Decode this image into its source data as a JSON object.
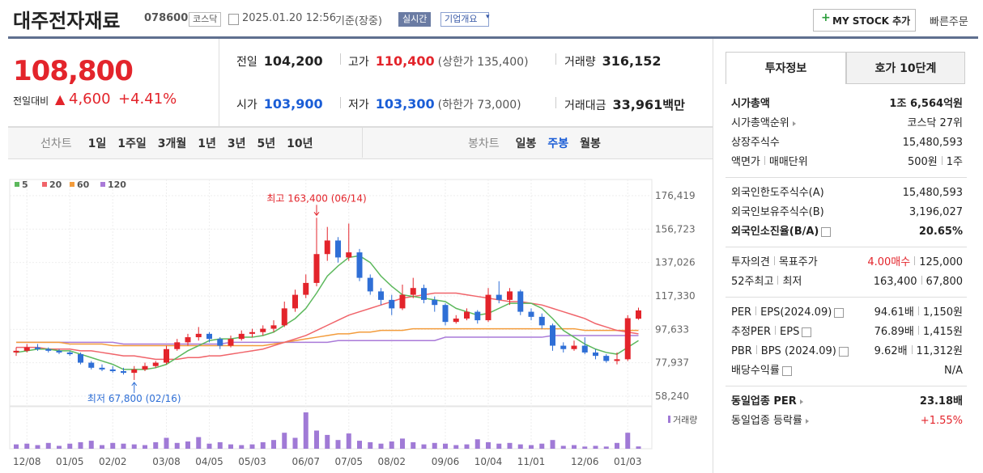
{
  "header": {
    "name": "대주전자재료",
    "code": "078600",
    "market": "코스닥",
    "datetime": "2025.01.20 12:56",
    "basis": "기준(장중)",
    "realtime": "실시간",
    "overview": "기업개요",
    "mystock": "MY STOCK 추가",
    "quickorder": "빠른주문"
  },
  "price": {
    "current": "108,800",
    "change_label": "전일대비",
    "change": "4,600",
    "change_rate": "+4.41%"
  },
  "quote": [
    {
      "label": "전일",
      "value": "104,200"
    },
    {
      "label": "고가",
      "value": "110,400",
      "note": "(상한가 135,400)",
      "color": "#e3242b"
    },
    {
      "label": "거래량",
      "value": "316,152"
    },
    {
      "label": "시가",
      "value": "103,900",
      "color": "#1a5dd6"
    },
    {
      "label": "저가",
      "value": "103,300",
      "note": "(하한가 73,000)",
      "color": "#1a5dd6"
    },
    {
      "label": "거래대금",
      "value": "33,961",
      "unit": "백만"
    }
  ],
  "chart_tabs": {
    "line_label": "선차트",
    "periods": [
      "1일",
      "1주일",
      "3개월",
      "1년",
      "3년",
      "5년",
      "10년"
    ],
    "candle_label": "봉차트",
    "candles": [
      "일봉",
      "주봉",
      "월봉"
    ],
    "selected": "주봉"
  },
  "chart_data": {
    "type": "candlestick",
    "up_color": "#e3242b",
    "down_color": "#2f6fd6",
    "volume_color": "#a07ad6",
    "volume_label": "거래량",
    "annotations": {
      "high": "최고 163,400 (06/14)",
      "low": "최저 67,800 (02/16)"
    },
    "categories": [
      null,
      "12/08",
      null,
      null,
      null,
      "01/05",
      null,
      null,
      null,
      "02/02",
      null,
      null,
      null,
      null,
      "03/08",
      null,
      null,
      null,
      "04/05",
      null,
      null,
      null,
      "05/03",
      null,
      null,
      null,
      null,
      "06/07",
      null,
      null,
      null,
      "07/05",
      null,
      null,
      null,
      "08/02",
      null,
      null,
      null,
      null,
      "09/06",
      null,
      null,
      null,
      "10/04",
      null,
      null,
      null,
      "11/01",
      null,
      null,
      null,
      null,
      "12/06",
      null,
      null,
      null,
      "01/03",
      null
    ],
    "open": [
      84000,
      85000,
      87000,
      86000,
      85000,
      84000,
      83000,
      78000,
      75000,
      74000,
      73000,
      72000,
      74000,
      76000,
      78000,
      86000,
      90000,
      93000,
      95000,
      92000,
      88000,
      92000,
      95000,
      96000,
      98000,
      100000,
      110000,
      118000,
      125000,
      142000,
      150000,
      140000,
      143000,
      128000,
      120000,
      115000,
      110000,
      118000,
      122000,
      115000,
      112000,
      102000,
      104000,
      108000,
      103000,
      118000,
      115000,
      120000,
      108000,
      105000,
      100000,
      88000,
      86000,
      88000,
      84000,
      82000,
      79000,
      80000,
      103900
    ],
    "high": [
      87000,
      89000,
      89000,
      87000,
      86000,
      85000,
      84000,
      79000,
      77000,
      76000,
      75000,
      76000,
      78000,
      79000,
      88000,
      92000,
      95000,
      99000,
      96000,
      93000,
      94000,
      97000,
      98000,
      100000,
      103000,
      114000,
      121000,
      130000,
      163400,
      158000,
      152000,
      160000,
      145000,
      130000,
      122000,
      118000,
      124000,
      128000,
      124000,
      117000,
      113000,
      106000,
      110000,
      109000,
      122000,
      126000,
      122000,
      121000,
      110000,
      107000,
      101000,
      90000,
      91000,
      93000,
      86000,
      83000,
      84000,
      106000,
      110400
    ],
    "low": [
      82000,
      84000,
      85000,
      84000,
      83000,
      82000,
      77000,
      74000,
      73000,
      72000,
      71000,
      67800,
      73000,
      75000,
      77000,
      85000,
      88000,
      91000,
      90000,
      86000,
      87000,
      91000,
      93000,
      94000,
      96000,
      99000,
      108000,
      116000,
      123000,
      138000,
      137000,
      138000,
      126000,
      118000,
      112000,
      106000,
      109000,
      116000,
      113000,
      108000,
      100000,
      101000,
      103000,
      101000,
      102000,
      113000,
      112000,
      106000,
      103000,
      98000,
      85000,
      84000,
      85000,
      83000,
      80000,
      78000,
      77000,
      79000,
      103300
    ],
    "close": [
      85000,
      87000,
      86000,
      85000,
      84000,
      83000,
      78000,
      75000,
      74000,
      73000,
      72000,
      74000,
      76000,
      78000,
      86000,
      90000,
      93000,
      95000,
      92000,
      88000,
      92000,
      95000,
      96000,
      98000,
      100000,
      110000,
      118000,
      125000,
      142000,
      150000,
      140000,
      143000,
      128000,
      120000,
      115000,
      110000,
      118000,
      122000,
      115000,
      112000,
      102000,
      104000,
      108000,
      103000,
      118000,
      115000,
      120000,
      108000,
      105000,
      100000,
      88000,
      86000,
      88000,
      84000,
      82000,
      79000,
      80000,
      104200,
      108800
    ],
    "volume": [
      600000,
      700000,
      500000,
      800000,
      400000,
      700000,
      900000,
      1100000,
      500000,
      800000,
      700000,
      600000,
      500000,
      900000,
      1500000,
      800000,
      1000000,
      1600000,
      700000,
      900000,
      600000,
      500000,
      600000,
      900000,
      1200000,
      2200000,
      1500000,
      5000000,
      2500000,
      1900000,
      1200000,
      2100000,
      1100000,
      900000,
      700000,
      1000000,
      1400000,
      900000,
      600000,
      800000,
      700000,
      500000,
      600000,
      1300000,
      900000,
      700000,
      800000,
      600000,
      500000,
      700000,
      1200000,
      400000,
      500000,
      300000,
      400000,
      300000,
      800000,
      2200000,
      316152
    ],
    "series": [
      {
        "name": "5",
        "color": "#5cb85c",
        "values": [
          84000,
          85000,
          86000,
          86000,
          85000,
          85000,
          83000,
          81000,
          79000,
          77000,
          74000,
          74000,
          74000,
          75000,
          77000,
          81000,
          85000,
          88000,
          91000,
          92000,
          92000,
          93000,
          93000,
          94000,
          96000,
          100000,
          104000,
          110000,
          119000,
          129000,
          135000,
          140000,
          141000,
          137000,
          129000,
          123000,
          118000,
          117000,
          116000,
          115000,
          114000,
          110000,
          108000,
          106000,
          107000,
          110000,
          113000,
          113000,
          113000,
          110000,
          104000,
          97000,
          93000,
          89000,
          86000,
          84000,
          83000,
          87000,
          91000
        ]
      },
      {
        "name": "20",
        "color": "#f0646a",
        "values": [
          87000,
          87000,
          87000,
          86000,
          86000,
          86000,
          85000,
          85000,
          84000,
          83000,
          82000,
          82000,
          81000,
          80000,
          80000,
          80000,
          81000,
          81000,
          82000,
          82000,
          83000,
          84000,
          85000,
          86000,
          88000,
          90000,
          92000,
          94000,
          97000,
          100000,
          103000,
          106000,
          108000,
          110000,
          112000,
          114000,
          116000,
          117000,
          118000,
          119000,
          119000,
          119000,
          118000,
          117000,
          116000,
          115000,
          114000,
          114000,
          113000,
          112000,
          110000,
          108000,
          106000,
          104000,
          101000,
          99000,
          97000,
          96000,
          95000
        ]
      },
      {
        "name": "60",
        "color": "#f39c3c",
        "values": [
          90000,
          90000,
          90000,
          90000,
          90000,
          89000,
          89000,
          89000,
          89000,
          88000,
          88000,
          88000,
          88000,
          88000,
          88000,
          88000,
          88000,
          88000,
          88000,
          88000,
          88000,
          88000,
          88000,
          88000,
          89000,
          90000,
          91000,
          92000,
          93000,
          94000,
          95000,
          95000,
          96000,
          96000,
          97000,
          97000,
          97000,
          98000,
          98000,
          98000,
          98000,
          98000,
          98000,
          98000,
          98000,
          98000,
          98000,
          98000,
          98000,
          98000,
          98000,
          98000,
          98000,
          97000,
          97000,
          97000,
          97000,
          97000,
          97000
        ]
      },
      {
        "name": "120",
        "color": "#a97ad8",
        "values": [
          90000,
          90000,
          90000,
          90000,
          90000,
          90000,
          90000,
          90000,
          90000,
          90000,
          89000,
          89000,
          89000,
          89000,
          89000,
          89000,
          89000,
          89000,
          89000,
          89000,
          90000,
          90000,
          90000,
          90000,
          90000,
          90000,
          90000,
          90000,
          90000,
          90000,
          91000,
          91000,
          91000,
          91000,
          91000,
          91000,
          91000,
          91000,
          91000,
          91000,
          93000,
          93000,
          93000,
          93000,
          93000,
          93000,
          93000,
          93000,
          93000,
          93000,
          94000,
          94000,
          94000,
          94000,
          94000,
          94000,
          94000,
          94000,
          94000
        ]
      }
    ],
    "ylim": [
      58240,
      176419
    ],
    "yticks": [
      {
        "value": 58240,
        "label": "58,240"
      },
      {
        "value": 77937,
        "label": "77,937"
      },
      {
        "value": 97633,
        "label": "97,633"
      },
      {
        "value": 117330,
        "label": "117,330"
      },
      {
        "value": 137026,
        "label": "137,026"
      },
      {
        "value": 156723,
        "label": "156,723"
      },
      {
        "value": 176419,
        "label": "176,419"
      }
    ],
    "grid": true
  },
  "invest": {
    "tabs": [
      "투자정보",
      "호가 10단계"
    ],
    "sections": [
      [
        {
          "labels": [
            "시가총액"
          ],
          "values": [
            "1조 6,564억원"
          ],
          "bold": true
        },
        {
          "labels": [
            "시가총액순위"
          ],
          "values": [
            "코스닥 27위"
          ],
          "arrow": true
        },
        {
          "labels": [
            "상장주식수"
          ],
          "values": [
            "15,480,593"
          ]
        },
        {
          "labels": [
            "액면가",
            "매매단위"
          ],
          "values": [
            "500원",
            "1주"
          ]
        }
      ],
      [
        {
          "labels": [
            "외국인한도주식수(A)"
          ],
          "values": [
            "15,480,593"
          ]
        },
        {
          "labels": [
            "외국인보유주식수(B)"
          ],
          "values": [
            "3,196,027"
          ]
        },
        {
          "labels": [
            "외국인소진율(B/A)"
          ],
          "values": [
            "20.65%"
          ],
          "bold": true,
          "help": true
        }
      ],
      [
        {
          "labels": [
            "투자의견",
            "목표주가"
          ],
          "values": [
            "4.00매수",
            "125,000"
          ],
          "value_colors": [
            "#e3242b",
            "#222"
          ]
        },
        {
          "labels": [
            "52주최고",
            "최저"
          ],
          "values": [
            "163,400",
            "67,800"
          ]
        }
      ],
      [
        {
          "labels": [
            "PER",
            "EPS(2024.09)"
          ],
          "values": [
            "94.61배",
            "1,150원"
          ],
          "help": true
        },
        {
          "labels": [
            "추정PER",
            "EPS"
          ],
          "values": [
            "76.89배",
            "1,415원"
          ],
          "help": true
        },
        {
          "labels": [
            "PBR",
            "BPS (2024.09)"
          ],
          "values": [
            "9.62배",
            "11,312원"
          ],
          "help": true
        },
        {
          "labels": [
            "배당수익률"
          ],
          "values": [
            "N/A"
          ],
          "help": true
        }
      ],
      [
        {
          "labels": [
            "동일업종 PER"
          ],
          "values": [
            "23.18배"
          ],
          "bold": true,
          "arrow": true
        },
        {
          "labels": [
            "동일업종 등락률"
          ],
          "values": [
            "+1.55%"
          ],
          "arrow": true,
          "value_colors": [
            "#e3242b"
          ]
        }
      ]
    ]
  }
}
